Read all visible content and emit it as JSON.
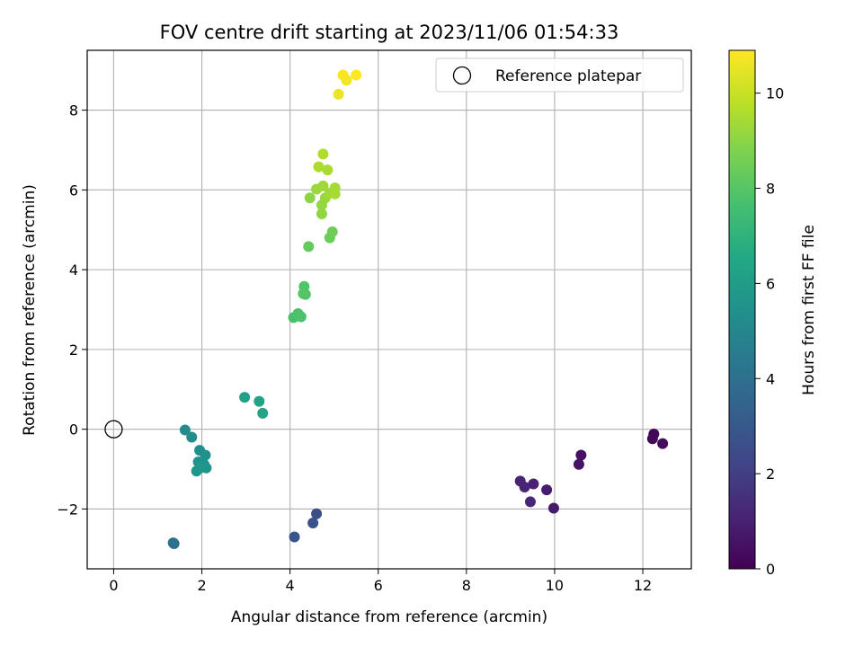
{
  "chart_data": {
    "type": "scatter",
    "title": "FOV centre drift starting at 2023/11/06 01:54:33",
    "xlabel": "Angular distance from reference (arcmin)",
    "ylabel": "Rotation from reference (arcmin)",
    "xlim": [
      -0.6,
      13.1
    ],
    "ylim": [
      -3.5,
      9.5
    ],
    "xticks": [
      0,
      2,
      4,
      6,
      8,
      10,
      12
    ],
    "yticks": [
      -2,
      0,
      2,
      4,
      6,
      8
    ],
    "grid": true,
    "colormap": "viridis",
    "colorbar": {
      "label": "Hours from first FF file",
      "range": [
        0,
        10.9
      ],
      "ticks": [
        0,
        2,
        4,
        6,
        8,
        10
      ]
    },
    "legend": {
      "placement": "top-right",
      "entries": [
        "Reference platepar"
      ]
    },
    "reference_point": {
      "x": 0,
      "y": 0
    },
    "points": [
      {
        "x": 12.25,
        "y": -0.12,
        "c": 0.1
      },
      {
        "x": 12.22,
        "y": -0.24,
        "c": 0.2
      },
      {
        "x": 12.45,
        "y": -0.36,
        "c": 0.3
      },
      {
        "x": 10.6,
        "y": -0.65,
        "c": 0.5
      },
      {
        "x": 10.55,
        "y": -0.88,
        "c": 0.6
      },
      {
        "x": 9.98,
        "y": -1.98,
        "c": 0.8
      },
      {
        "x": 9.82,
        "y": -1.52,
        "c": 0.9
      },
      {
        "x": 9.52,
        "y": -1.37,
        "c": 1.0
      },
      {
        "x": 9.22,
        "y": -1.3,
        "c": 1.1
      },
      {
        "x": 9.32,
        "y": -1.45,
        "c": 1.15
      },
      {
        "x": 9.45,
        "y": -1.82,
        "c": 1.2
      },
      {
        "x": 4.6,
        "y": -2.12,
        "c": 2.6
      },
      {
        "x": 4.52,
        "y": -2.35,
        "c": 2.7
      },
      {
        "x": 4.1,
        "y": -2.7,
        "c": 2.9
      },
      {
        "x": 1.37,
        "y": -2.87,
        "c": 4.0
      },
      {
        "x": 1.35,
        "y": -2.85,
        "c": 4.05
      },
      {
        "x": 1.62,
        "y": -0.02,
        "c": 5.2
      },
      {
        "x": 1.77,
        "y": -0.2,
        "c": 5.3
      },
      {
        "x": 1.95,
        "y": -0.53,
        "c": 5.4
      },
      {
        "x": 2.08,
        "y": -0.65,
        "c": 5.45
      },
      {
        "x": 1.92,
        "y": -0.82,
        "c": 5.5
      },
      {
        "x": 2.05,
        "y": -0.88,
        "c": 5.55
      },
      {
        "x": 2.1,
        "y": -0.97,
        "c": 5.6
      },
      {
        "x": 1.88,
        "y": -1.05,
        "c": 5.65
      },
      {
        "x": 1.95,
        "y": -0.98,
        "c": 5.7
      },
      {
        "x": 2.97,
        "y": 0.8,
        "c": 6.2
      },
      {
        "x": 3.3,
        "y": 0.7,
        "c": 6.3
      },
      {
        "x": 3.38,
        "y": 0.4,
        "c": 6.35
      },
      {
        "x": 4.08,
        "y": 2.8,
        "c": 7.7
      },
      {
        "x": 4.18,
        "y": 2.9,
        "c": 7.75
      },
      {
        "x": 4.25,
        "y": 2.82,
        "c": 7.8
      },
      {
        "x": 4.35,
        "y": 3.38,
        "c": 7.85
      },
      {
        "x": 4.32,
        "y": 3.58,
        "c": 7.9
      },
      {
        "x": 4.3,
        "y": 3.4,
        "c": 7.95
      },
      {
        "x": 4.42,
        "y": 4.58,
        "c": 8.3
      },
      {
        "x": 4.9,
        "y": 4.8,
        "c": 8.4
      },
      {
        "x": 4.96,
        "y": 4.95,
        "c": 8.5
      },
      {
        "x": 4.45,
        "y": 5.8,
        "c": 9.0
      },
      {
        "x": 4.72,
        "y": 5.4,
        "c": 9.1
      },
      {
        "x": 4.72,
        "y": 5.62,
        "c": 9.15
      },
      {
        "x": 4.8,
        "y": 5.8,
        "c": 9.2
      },
      {
        "x": 4.6,
        "y": 6.02,
        "c": 9.25
      },
      {
        "x": 4.75,
        "y": 6.1,
        "c": 9.3
      },
      {
        "x": 4.9,
        "y": 5.92,
        "c": 9.35
      },
      {
        "x": 5.02,
        "y": 6.05,
        "c": 9.4
      },
      {
        "x": 5.02,
        "y": 5.9,
        "c": 9.45
      },
      {
        "x": 4.85,
        "y": 6.5,
        "c": 9.5
      },
      {
        "x": 4.65,
        "y": 6.58,
        "c": 9.55
      },
      {
        "x": 4.75,
        "y": 6.9,
        "c": 9.6
      },
      {
        "x": 5.1,
        "y": 8.4,
        "c": 10.6
      },
      {
        "x": 5.28,
        "y": 8.75,
        "c": 10.7
      },
      {
        "x": 5.2,
        "y": 8.88,
        "c": 10.8
      },
      {
        "x": 5.5,
        "y": 8.88,
        "c": 10.9
      }
    ]
  }
}
